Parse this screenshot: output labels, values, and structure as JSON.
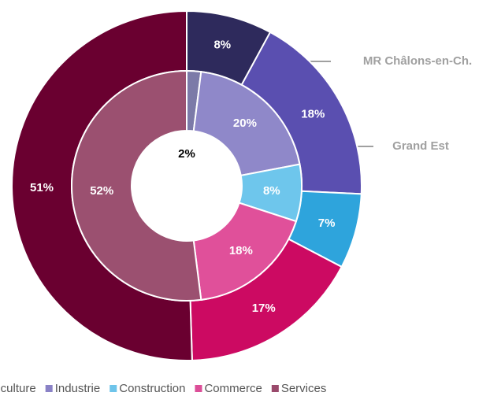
{
  "chart_data": {
    "type": "donut",
    "categories": [
      "Agriculture",
      "Industrie",
      "Construction",
      "Commerce",
      "Services"
    ],
    "legend_colors": [
      "#8a88b8",
      "#8a82c6",
      "#6ec4ea",
      "#dc4e98",
      "#9a4a6c"
    ],
    "legend": "bottom",
    "series": [
      {
        "name": "MR Châlons-en-Ch.",
        "ring": "outer",
        "colors": [
          "#2e2a5c",
          "#5a4fb0",
          "#2ea4dc",
          "#cc0a62",
          "#6a0030"
        ],
        "values": [
          8,
          18,
          7,
          17,
          51
        ],
        "value_labels": [
          "8%",
          "18%",
          "7%",
          "17%",
          "51%"
        ]
      },
      {
        "name": "Grand Est",
        "ring": "inner",
        "colors": [
          "#7c7aa8",
          "#8f88c9",
          "#6ec6ec",
          "#e0509a",
          "#9b5070"
        ],
        "values": [
          2,
          20,
          8,
          18,
          52
        ],
        "value_labels": [
          "2%",
          "20%",
          "8%",
          "18%",
          "52%"
        ]
      }
    ]
  }
}
